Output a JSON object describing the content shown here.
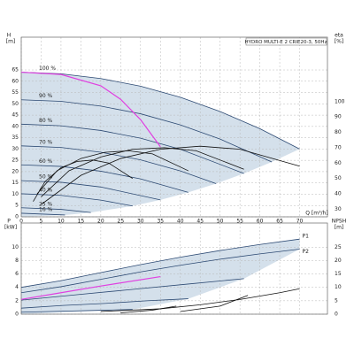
{
  "chart_data": [
    {
      "type": "line",
      "title": "HYDRO MULTI-E 2 CRIE20-3, 50Hz",
      "y_label": "H",
      "y_unit": "[m]",
      "y2_label": "eta",
      "y2_unit": "[%]",
      "x_label": "Q [m³/h]",
      "xlim": [
        0,
        77
      ],
      "xticks": [
        0,
        5,
        10,
        15,
        20,
        25,
        30,
        35,
        40,
        45,
        50,
        55,
        60,
        65,
        70
      ],
      "ylim": [
        0,
        79.5
      ],
      "yticks": [
        0,
        5,
        10,
        15,
        20,
        25,
        30,
        35,
        40,
        45,
        50,
        55,
        60,
        65
      ],
      "y2lim": [
        25,
        142
      ],
      "y2ticks": [
        30,
        40,
        50,
        60,
        70,
        80,
        90,
        100
      ],
      "grid": true,
      "area_color": "#c9d8e6",
      "series": [
        {
          "name": "100 %",
          "color": "#2d4a73",
          "x": [
            0,
            10,
            20,
            30,
            40,
            50,
            60,
            70
          ],
          "values": [
            64,
            63.3,
            61.2,
            57.8,
            52.9,
            46.6,
            39.0,
            30.0
          ]
        },
        {
          "name": "90 %",
          "color": "#2d4a73",
          "x": [
            0,
            10,
            20,
            30,
            40,
            50,
            63
          ],
          "values": [
            51.8,
            51.1,
            49.0,
            45.6,
            40.7,
            34.4,
            24.3
          ]
        },
        {
          "name": "80 %",
          "color": "#2d4a73",
          "x": [
            0,
            10,
            20,
            30,
            40,
            56
          ],
          "values": [
            41.0,
            40.3,
            38.2,
            34.8,
            29.9,
            19.2
          ]
        },
        {
          "name": "70 %",
          "color": "#2d4a73",
          "x": [
            0,
            10,
            20,
            30,
            40,
            49
          ],
          "values": [
            31.4,
            30.7,
            28.6,
            25.2,
            20.3,
            14.7
          ]
        },
        {
          "name": "60 %",
          "color": "#2d4a73",
          "x": [
            0,
            10,
            20,
            30,
            42
          ],
          "values": [
            23.0,
            22.3,
            20.2,
            16.8,
            10.8
          ]
        },
        {
          "name": "50 %",
          "color": "#2d4a73",
          "x": [
            0,
            10,
            20,
            35
          ],
          "values": [
            16.0,
            15.3,
            13.2,
            7.5
          ]
        },
        {
          "name": "40 %",
          "color": "#2d4a73",
          "x": [
            0,
            10,
            20,
            28
          ],
          "values": [
            10.2,
            9.5,
            7.4,
            4.8
          ]
        },
        {
          "name": "25 %",
          "color": "#2d4a73",
          "x": [
            0,
            10,
            17.5
          ],
          "values": [
            4.0,
            3.3,
            1.9
          ]
        },
        {
          "name": "16 %",
          "color": "#2d4a73",
          "x": [
            0,
            11
          ],
          "values": [
            1.6,
            0.8
          ]
        },
        {
          "color": "#e040e0",
          "x": [
            0,
            10,
            20,
            25,
            30,
            35
          ],
          "values": [
            64,
            63,
            58,
            52,
            43,
            31
          ]
        },
        {
          "color": "#111111",
          "axis": "y2",
          "x": [
            5,
            15,
            25,
            35,
            45,
            55,
            70
          ],
          "values": [
            33,
            52,
            63,
            69,
            71,
            69,
            58
          ]
        },
        {
          "color": "#111111",
          "axis": "y2",
          "x": [
            5,
            12,
            20,
            28,
            36,
            44,
            56
          ],
          "values": [
            38,
            55,
            64,
            69,
            70,
            68,
            56
          ]
        },
        {
          "color": "#111111",
          "axis": "y2",
          "x": [
            4,
            9,
            15,
            21,
            27,
            33,
            42
          ],
          "values": [
            40,
            55,
            63,
            67,
            68,
            66,
            55
          ]
        },
        {
          "color": "#111111",
          "axis": "y2",
          "x": [
            3,
            6,
            10,
            14,
            18,
            22,
            28
          ],
          "values": [
            35,
            48,
            57,
            61,
            62,
            60,
            50
          ]
        }
      ]
    },
    {
      "type": "line",
      "y_label": "P",
      "y_unit": "[kW]",
      "y2_label": "NPSH",
      "y2_unit": "[m]",
      "xlim": [
        0,
        77
      ],
      "xticks": [
        0,
        5,
        10,
        15,
        20,
        25,
        30,
        35,
        40,
        45,
        50,
        55,
        60,
        65,
        70
      ],
      "ylim": [
        0,
        13.6
      ],
      "yticks": [
        0,
        2,
        4,
        6,
        8,
        10
      ],
      "y2lim": [
        0,
        34
      ],
      "y2ticks": [
        0,
        5,
        10,
        15,
        20,
        25
      ],
      "grid": true,
      "area_color": "#c9d8e6",
      "series": [
        {
          "name": "P1",
          "color": "#2d4a73",
          "x": [
            0,
            10,
            20,
            30,
            40,
            50,
            60,
            70
          ],
          "values": [
            4.0,
            5.0,
            6.2,
            7.4,
            8.5,
            9.5,
            10.4,
            11.2
          ]
        },
        {
          "name": "P2",
          "color": "#2d4a73",
          "x": [
            0,
            10,
            20,
            30,
            40,
            50,
            60,
            70
          ],
          "values": [
            3.2,
            4.1,
            5.2,
            6.3,
            7.3,
            8.2,
            9.0,
            9.7
          ]
        },
        {
          "color": "#2d4a73",
          "x": [
            0,
            14,
            28,
            42,
            56
          ],
          "values": [
            2.1,
            2.9,
            3.7,
            4.5,
            5.3
          ]
        },
        {
          "color": "#2d4a73",
          "x": [
            0,
            10.5,
            21,
            31.5,
            42
          ],
          "values": [
            0.9,
            1.3,
            1.6,
            2.0,
            2.3
          ]
        },
        {
          "color": "#2d4a73",
          "x": [
            0,
            7,
            14,
            21,
            28
          ],
          "values": [
            0.3,
            0.4,
            0.5,
            0.6,
            0.7
          ]
        },
        {
          "color": "#e040e0",
          "x": [
            0,
            10,
            20,
            35
          ],
          "values": [
            2.2,
            3.2,
            4.2,
            5.6
          ]
        },
        {
          "color": "#111111",
          "axis": "y2",
          "x": [
            20,
            35,
            45,
            55,
            65,
            70
          ],
          "values": [
            1,
            2,
            3.5,
            5.5,
            8,
            9.5
          ]
        },
        {
          "color": "#111111",
          "axis": "y2",
          "x": [
            40,
            50,
            57
          ],
          "values": [
            1,
            3,
            7
          ]
        },
        {
          "color": "#111111",
          "axis": "y2",
          "x": [
            25,
            33,
            39
          ],
          "values": [
            0.5,
            1.5,
            3
          ]
        }
      ]
    }
  ]
}
